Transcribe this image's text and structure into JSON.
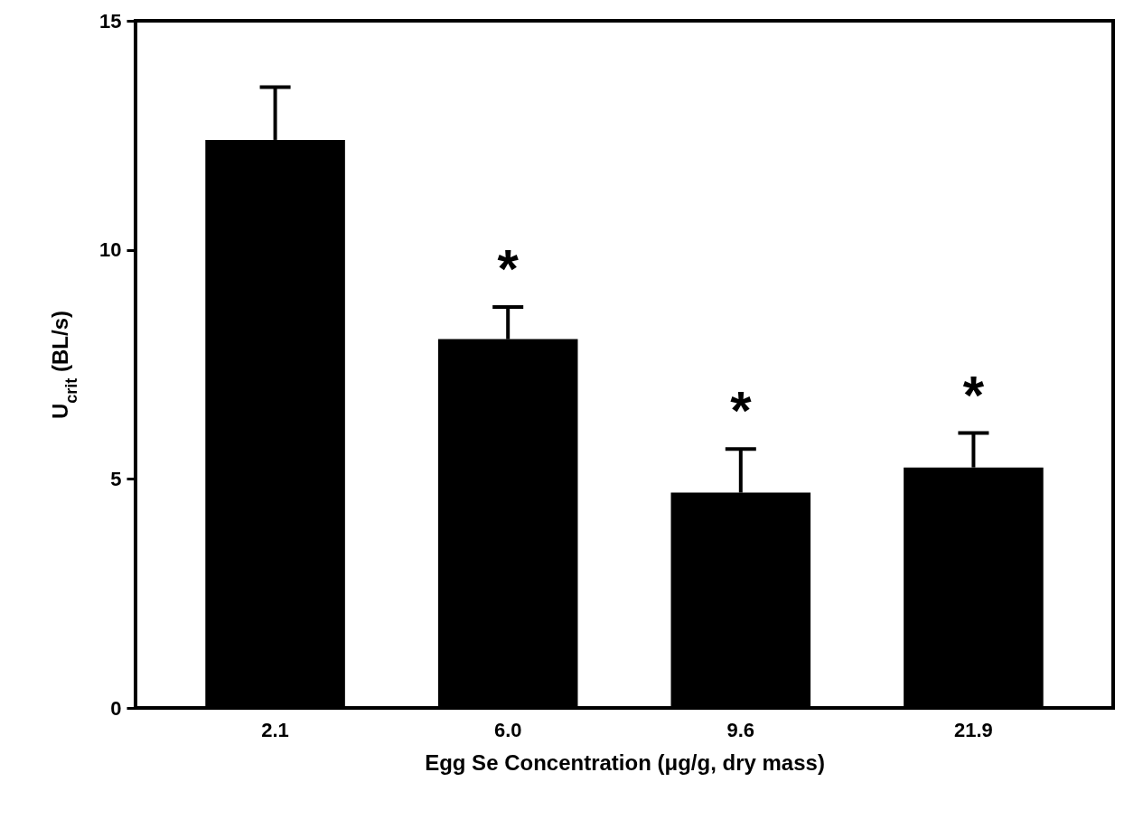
{
  "chart_data": {
    "type": "bar",
    "xlabel": "Egg Se Concentration (μg/g, dry mass)",
    "ylabel": "U$_{crit}$ (BL/s)",
    "categories": [
      "2.1",
      "6.0",
      "9.6",
      "21.9"
    ],
    "values": [
      12.4,
      8.05,
      4.7,
      5.25
    ],
    "errors": [
      [
        12.4,
        13.55
      ],
      [
        8.05,
        8.75
      ],
      [
        4.7,
        5.65
      ],
      [
        5.25,
        6.0
      ]
    ],
    "color": "#000000",
    "ylim": [
      0,
      15
    ],
    "yticks": [
      0,
      5,
      10,
      15
    ],
    "grid": false,
    "annotations": [
      "*",
      "*",
      "*"
    ]
  }
}
